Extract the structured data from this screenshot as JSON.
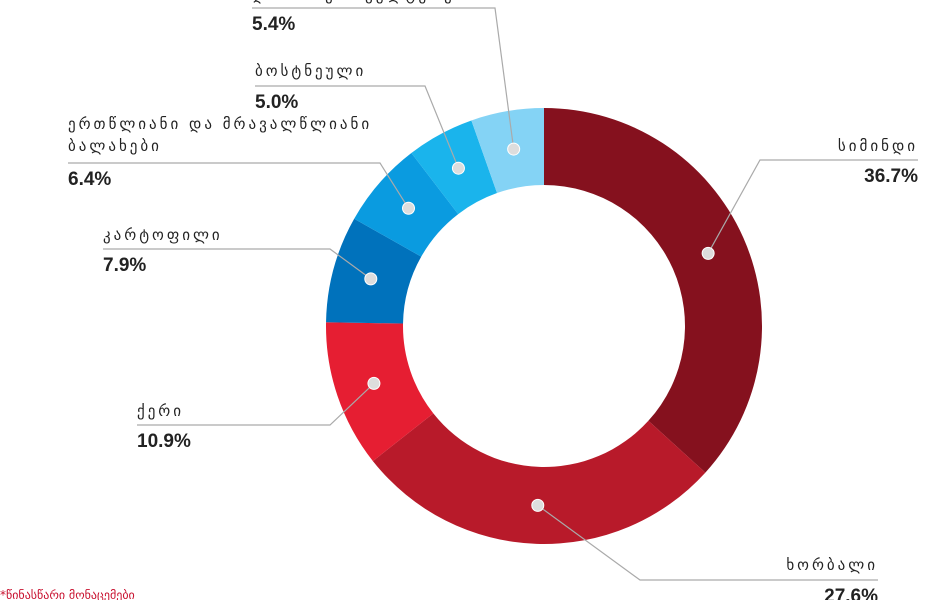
{
  "chart_data": {
    "type": "donut",
    "categories": [
      "სიმინდი",
      "ხორბალი",
      "ქერი",
      "კარტოფილი",
      "ერთწლიანი და მრავალწლიანი ბალახები",
      "ბოსტნეული",
      "დანარჩენი კულტურები"
    ],
    "values": [
      36.7,
      27.6,
      10.9,
      7.9,
      6.4,
      5.0,
      5.4
    ],
    "value_labels": [
      "36.7%",
      "27.6%",
      "10.9%",
      "7.9%",
      "6.4%",
      "5.0%",
      "5.4%"
    ],
    "colors": [
      "#85111e",
      "#b81a2a",
      "#e61e32",
      "#0072bc",
      "#0a9be0",
      "#1ab4ec",
      "#84d3f5"
    ],
    "footnote": "*წინასწარი მონაცემები"
  }
}
